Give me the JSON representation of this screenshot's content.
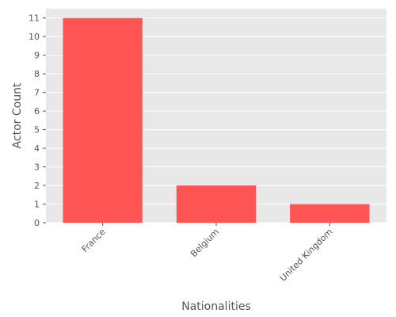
{
  "chart_data": {
    "type": "bar",
    "categories": [
      "France",
      "Belgium",
      "United Kingdom"
    ],
    "values": [
      11,
      2,
      1
    ],
    "title": "",
    "xlabel": "Nationalities",
    "ylabel": "Actor Count",
    "ylim": [
      0,
      11.5
    ],
    "yticks": [
      0,
      1,
      2,
      3,
      4,
      5,
      6,
      7,
      8,
      9,
      10,
      11
    ],
    "grid": true,
    "colors": {
      "bar": "#ff5454",
      "plot_background": "#e8e8e8",
      "grid": "#ffffff",
      "text": "#555555"
    }
  }
}
